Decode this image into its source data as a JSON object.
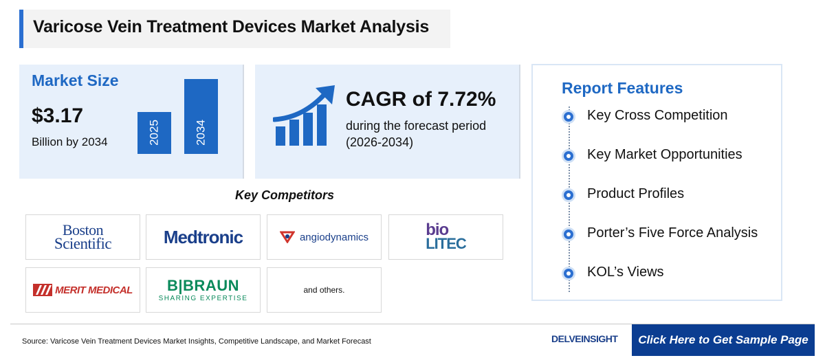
{
  "header": {
    "title": "Varicose Vein Treatment Devices Market Analysis"
  },
  "market_size": {
    "heading": "Market Size",
    "value": "$3.17",
    "subtext": "Billion by 2034",
    "bar_labels": [
      "2025",
      "2034"
    ],
    "bar_color": "#1e68c3"
  },
  "cagr": {
    "value": "CAGR of 7.72%",
    "subtext": "during the forecast period (2026-2034)",
    "icon": "growth-chart-icon"
  },
  "competitors": {
    "heading": "Key Competitors",
    "logos": [
      "Boston Scientific",
      "Medtronic",
      "angiodynamics",
      "bio LITEC",
      "MERIT MEDICAL",
      "B|BRAUN",
      "SHARING EXPERTISE"
    ],
    "others": "and others."
  },
  "report_features": {
    "heading": "Report Features",
    "items": [
      "Key Cross Competition",
      "Key Market Opportunities",
      "Product Profiles",
      "Porter’s Five Force Analysis",
      "KOL’s Views"
    ]
  },
  "footer": {
    "source": "Source: Varicose Vein Treatment Devices Market Insights, Competitive Landscape, and Market Forecast",
    "brand": "DELVEINSIGHT",
    "cta": "Click Here to Get Sample Page"
  },
  "colors": {
    "accent": "#1e68c3",
    "panel": "#e7f0fb",
    "cta_bg": "#0b3d91"
  }
}
